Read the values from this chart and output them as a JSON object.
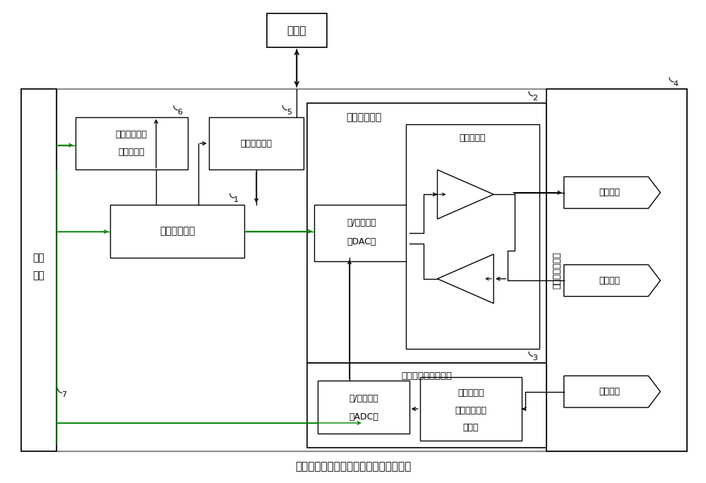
{
  "title": "基于脲酶生物传感器的土壤重金属检测仪",
  "pc_label": "上位机",
  "power_label1": "电源",
  "power_label2": "模块",
  "sys_ctrl": "系统控制模块",
  "display_store1": "界面显示与数",
  "display_store2": "据存储模块",
  "serial_comm": "串口通信模块",
  "potentiostat_module": "恒电位仪模块",
  "potentiostat_circuit": "恒电位电路",
  "dac_label1": "数/模转换器",
  "dac_label2": "（DAC）",
  "biosensor": "脲酶生物传感器",
  "aux_electrode": "辅助电极",
  "ref_electrode": "参比电极",
  "work_electrode": "工作电极",
  "signal_module": "信号采集与处理模块",
  "adc_label1": "模/数转换器",
  "adc_label2": "（ADC）",
  "iv_conv1": "电流电压转",
  "iv_conv2": "换、滤波及放",
  "iv_conv3": "大电路",
  "outer_border_color": "#999999",
  "inner_border_color": "#aaaaaa",
  "green_color": "#008000",
  "black": "#000000",
  "white": "#ffffff"
}
